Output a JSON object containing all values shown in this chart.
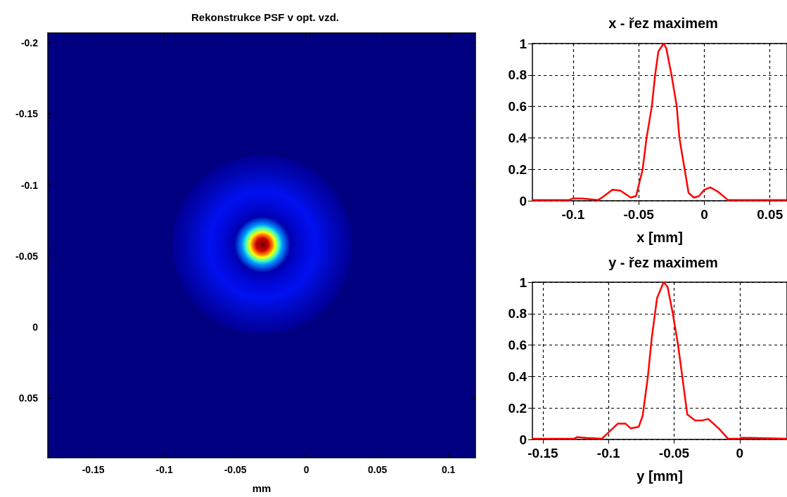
{
  "chart_data": [
    {
      "type": "scatter",
      "title": "Rekonstrukce PSF v opt. vzd.",
      "xlabel": "mm",
      "xlim": [
        -0.182,
        0.119
      ],
      "ylim": [
        0.092,
        -0.207
      ],
      "xticks": [
        -0.15,
        -0.1,
        -0.05,
        0,
        0.05,
        0.1
      ],
      "yticks": [
        -0.2,
        -0.15,
        -0.1,
        -0.05,
        0,
        0.05
      ]
    },
    {
      "type": "line",
      "title": "x - řez maximem",
      "xlabel": "x [mm]",
      "xlim": [
        -0.131,
        0.063
      ],
      "ylim": [
        0,
        1
      ],
      "xticks": [
        -0.1,
        -0.05,
        0,
        0.05
      ],
      "yticks": [
        0,
        0.2,
        0.4,
        0.6,
        0.8,
        1
      ],
      "grid": true,
      "x": [
        -0.131,
        -0.103,
        -0.1,
        -0.093,
        -0.081,
        -0.078,
        -0.07,
        -0.064,
        -0.056,
        -0.052,
        -0.047,
        -0.044,
        -0.04,
        -0.0375,
        -0.035,
        -0.031,
        -0.029,
        -0.025,
        -0.021,
        -0.019,
        -0.015,
        -0.012,
        -0.008,
        -0.004,
        0,
        0.0045,
        0.01,
        0.018,
        0.063
      ],
      "series": [
        {
          "color": "#ff0000",
          "values": [
            0.005,
            0.005,
            0.015,
            0.015,
            0.005,
            0.02,
            0.07,
            0.065,
            0.02,
            0.03,
            0.2,
            0.4,
            0.6,
            0.8,
            0.95,
            1,
            0.97,
            0.8,
            0.6,
            0.4,
            0.2,
            0.05,
            0.02,
            0.03,
            0.07,
            0.085,
            0.06,
            0.005,
            0.005
          ]
        }
      ]
    },
    {
      "type": "line",
      "title": "y - řez maximem",
      "xlabel": "y [mm]",
      "xlim": [
        -0.158,
        0.036
      ],
      "ylim": [
        0,
        1
      ],
      "xticks": [
        -0.15,
        -0.1,
        -0.05,
        0
      ],
      "yticks": [
        0,
        0.2,
        0.4,
        0.6,
        0.8,
        1
      ],
      "grid": true,
      "x": [
        -0.158,
        -0.126,
        -0.124,
        -0.117,
        -0.105,
        -0.093,
        -0.087,
        -0.083,
        -0.077,
        -0.074,
        -0.07,
        -0.067,
        -0.063,
        -0.058,
        -0.055,
        -0.051,
        -0.047,
        -0.043,
        -0.04,
        -0.034,
        -0.029,
        -0.024,
        -0.016,
        -0.009,
        0,
        0.001,
        0.008,
        0.036
      ],
      "series": [
        {
          "color": "#ff0000",
          "values": [
            0.005,
            0.005,
            0.015,
            0.01,
            0.005,
            0.1,
            0.1,
            0.07,
            0.08,
            0.15,
            0.4,
            0.65,
            0.9,
            1,
            0.97,
            0.8,
            0.6,
            0.35,
            0.16,
            0.12,
            0.12,
            0.13,
            0.07,
            0.005,
            0.005,
            0.01,
            0.01,
            0.005
          ]
        }
      ]
    }
  ]
}
